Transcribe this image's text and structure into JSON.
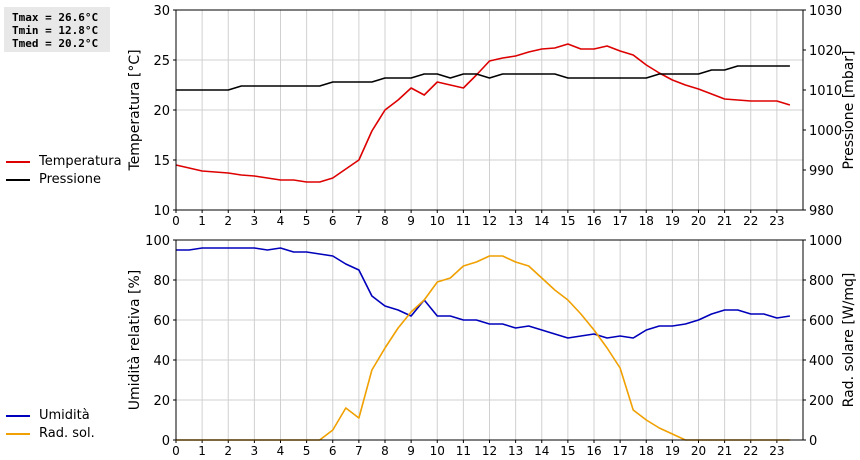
{
  "stats": {
    "tmax": "Tmax = 26.6°C",
    "tmin": "Tmin = 12.8°C",
    "tmed": "Tmed = 20.2°C"
  },
  "legend_top": [
    {
      "label": "Temperatura",
      "color": "#dd0000"
    },
    {
      "label": "Pressione",
      "color": "#000000"
    }
  ],
  "legend_bottom": [
    {
      "label": "Umidità",
      "color": "#0000bb"
    },
    {
      "label": "Rad. sol.",
      "color": "#f0a000"
    }
  ],
  "chart_data": [
    {
      "type": "line",
      "xlabel": "",
      "ylabel": "Temperatura [°C]",
      "y2label": "Pressione [mbar]",
      "xlim": [
        0,
        24
      ],
      "ylim": [
        10,
        30
      ],
      "y2lim": [
        980,
        1030
      ],
      "x_ticks": [
        "0",
        "1",
        "2",
        "3",
        "4",
        "5",
        "6",
        "7",
        "8",
        "9",
        "10",
        "11",
        "12",
        "13",
        "14",
        "15",
        "16",
        "17",
        "18",
        "19",
        "20",
        "21",
        "22",
        "23"
      ],
      "y_ticks": [
        "10",
        "15",
        "20",
        "25",
        "30"
      ],
      "y2_ticks": [
        "980",
        "990",
        "1000",
        "1010",
        "1020",
        "1030"
      ],
      "grid": true,
      "series": [
        {
          "name": "Temperatura",
          "color": "#dd0000",
          "axis": "left",
          "x": [
            0,
            0.5,
            1,
            1.5,
            2,
            2.5,
            3,
            3.5,
            4,
            4.5,
            5,
            5.5,
            6,
            6.5,
            7,
            7.5,
            8,
            8.5,
            9,
            9.5,
            10,
            10.5,
            11,
            11.5,
            12,
            12.5,
            13,
            13.5,
            14,
            14.5,
            15,
            15.5,
            16,
            16.5,
            17,
            17.5,
            18,
            18.5,
            19,
            19.5,
            20,
            20.5,
            21,
            21.5,
            22,
            22.5,
            23,
            23.5
          ],
          "values": [
            14.5,
            14.2,
            13.9,
            13.8,
            13.7,
            13.5,
            13.4,
            13.2,
            13.0,
            13.0,
            12.8,
            12.8,
            13.2,
            14.1,
            15.0,
            17.9,
            20.0,
            21.0,
            22.2,
            21.5,
            22.8,
            22.5,
            22.2,
            23.5,
            24.9,
            25.2,
            25.4,
            25.8,
            26.1,
            26.2,
            26.6,
            26.1,
            26.1,
            26.4,
            25.9,
            25.5,
            24.5,
            23.7,
            23.0,
            22.5,
            22.1,
            21.6,
            21.1,
            21.0,
            20.9,
            20.9,
            20.9,
            20.5
          ]
        },
        {
          "name": "Pressione",
          "color": "#000000",
          "axis": "right",
          "x": [
            0,
            0.5,
            1,
            1.5,
            2,
            2.5,
            3,
            3.5,
            4,
            4.5,
            5,
            5.5,
            6,
            6.5,
            7,
            7.5,
            8,
            8.5,
            9,
            9.5,
            10,
            10.5,
            11,
            11.5,
            12,
            12.5,
            13,
            13.5,
            14,
            14.5,
            15,
            15.5,
            16,
            16.5,
            17,
            17.5,
            18,
            18.5,
            19,
            19.5,
            20,
            20.5,
            21,
            21.5,
            22,
            22.5,
            23,
            23.5
          ],
          "values": [
            1010,
            1010,
            1010,
            1010,
            1010,
            1011,
            1011,
            1011,
            1011,
            1011,
            1011,
            1011,
            1012,
            1012,
            1012,
            1012,
            1013,
            1013,
            1013,
            1014,
            1014,
            1013,
            1014,
            1014,
            1013,
            1014,
            1014,
            1014,
            1014,
            1014,
            1013,
            1013,
            1013,
            1013,
            1013,
            1013,
            1013,
            1014,
            1014,
            1014,
            1014,
            1015,
            1015,
            1016,
            1016,
            1016,
            1016,
            1016
          ]
        }
      ]
    },
    {
      "type": "line",
      "xlabel": "",
      "ylabel": "Umidità relativa [%]",
      "y2label": "Rad. solare [W/mq]",
      "xlim": [
        0,
        24
      ],
      "ylim": [
        0,
        100
      ],
      "y2lim": [
        0,
        1000
      ],
      "x_ticks": [
        "0",
        "1",
        "2",
        "3",
        "4",
        "5",
        "6",
        "7",
        "8",
        "9",
        "10",
        "11",
        "12",
        "13",
        "14",
        "15",
        "16",
        "17",
        "18",
        "19",
        "20",
        "21",
        "22",
        "23"
      ],
      "y_ticks": [
        "0",
        "20",
        "40",
        "60",
        "80",
        "100"
      ],
      "y2_ticks": [
        "0",
        "200",
        "400",
        "600",
        "800",
        "1000"
      ],
      "grid": true,
      "series": [
        {
          "name": "Umidità",
          "color": "#0000bb",
          "axis": "left",
          "x": [
            0,
            0.5,
            1,
            1.5,
            2,
            2.5,
            3,
            3.5,
            4,
            4.5,
            5,
            5.5,
            6,
            6.5,
            7,
            7.5,
            8,
            8.5,
            9,
            9.5,
            10,
            10.5,
            11,
            11.5,
            12,
            12.5,
            13,
            13.5,
            14,
            14.5,
            15,
            15.5,
            16,
            16.5,
            17,
            17.5,
            18,
            18.5,
            19,
            19.5,
            20,
            20.5,
            21,
            21.5,
            22,
            22.5,
            23,
            23.5
          ],
          "values": [
            95,
            95,
            96,
            96,
            96,
            96,
            96,
            95,
            96,
            94,
            94,
            93,
            92,
            88,
            85,
            72,
            67,
            65,
            62,
            70,
            62,
            62,
            60,
            60,
            58,
            58,
            56,
            57,
            55,
            53,
            51,
            52,
            53,
            51,
            52,
            51,
            55,
            57,
            57,
            58,
            60,
            63,
            65,
            65,
            63,
            63,
            61,
            62
          ]
        },
        {
          "name": "Rad. sol.",
          "color": "#f0a000",
          "axis": "right",
          "x": [
            0,
            0.5,
            1,
            1.5,
            2,
            2.5,
            3,
            3.5,
            4,
            4.5,
            5,
            5.5,
            6,
            6.5,
            7,
            7.5,
            8,
            8.5,
            9,
            9.5,
            10,
            10.5,
            11,
            11.5,
            12,
            12.5,
            13,
            13.5,
            14,
            14.5,
            15,
            15.5,
            16,
            16.5,
            17,
            17.5,
            18,
            18.5,
            19,
            19.5,
            20,
            20.5,
            21,
            21.5,
            22,
            22.5,
            23,
            23.5
          ],
          "values": [
            0,
            0,
            0,
            0,
            0,
            0,
            0,
            0,
            0,
            0,
            0,
            0,
            50,
            160,
            110,
            350,
            460,
            560,
            640,
            700,
            790,
            810,
            870,
            890,
            920,
            920,
            890,
            870,
            810,
            750,
            700,
            630,
            550,
            460,
            360,
            150,
            100,
            60,
            30,
            0,
            0,
            0,
            0,
            0,
            0,
            0,
            0,
            0
          ]
        }
      ]
    }
  ]
}
